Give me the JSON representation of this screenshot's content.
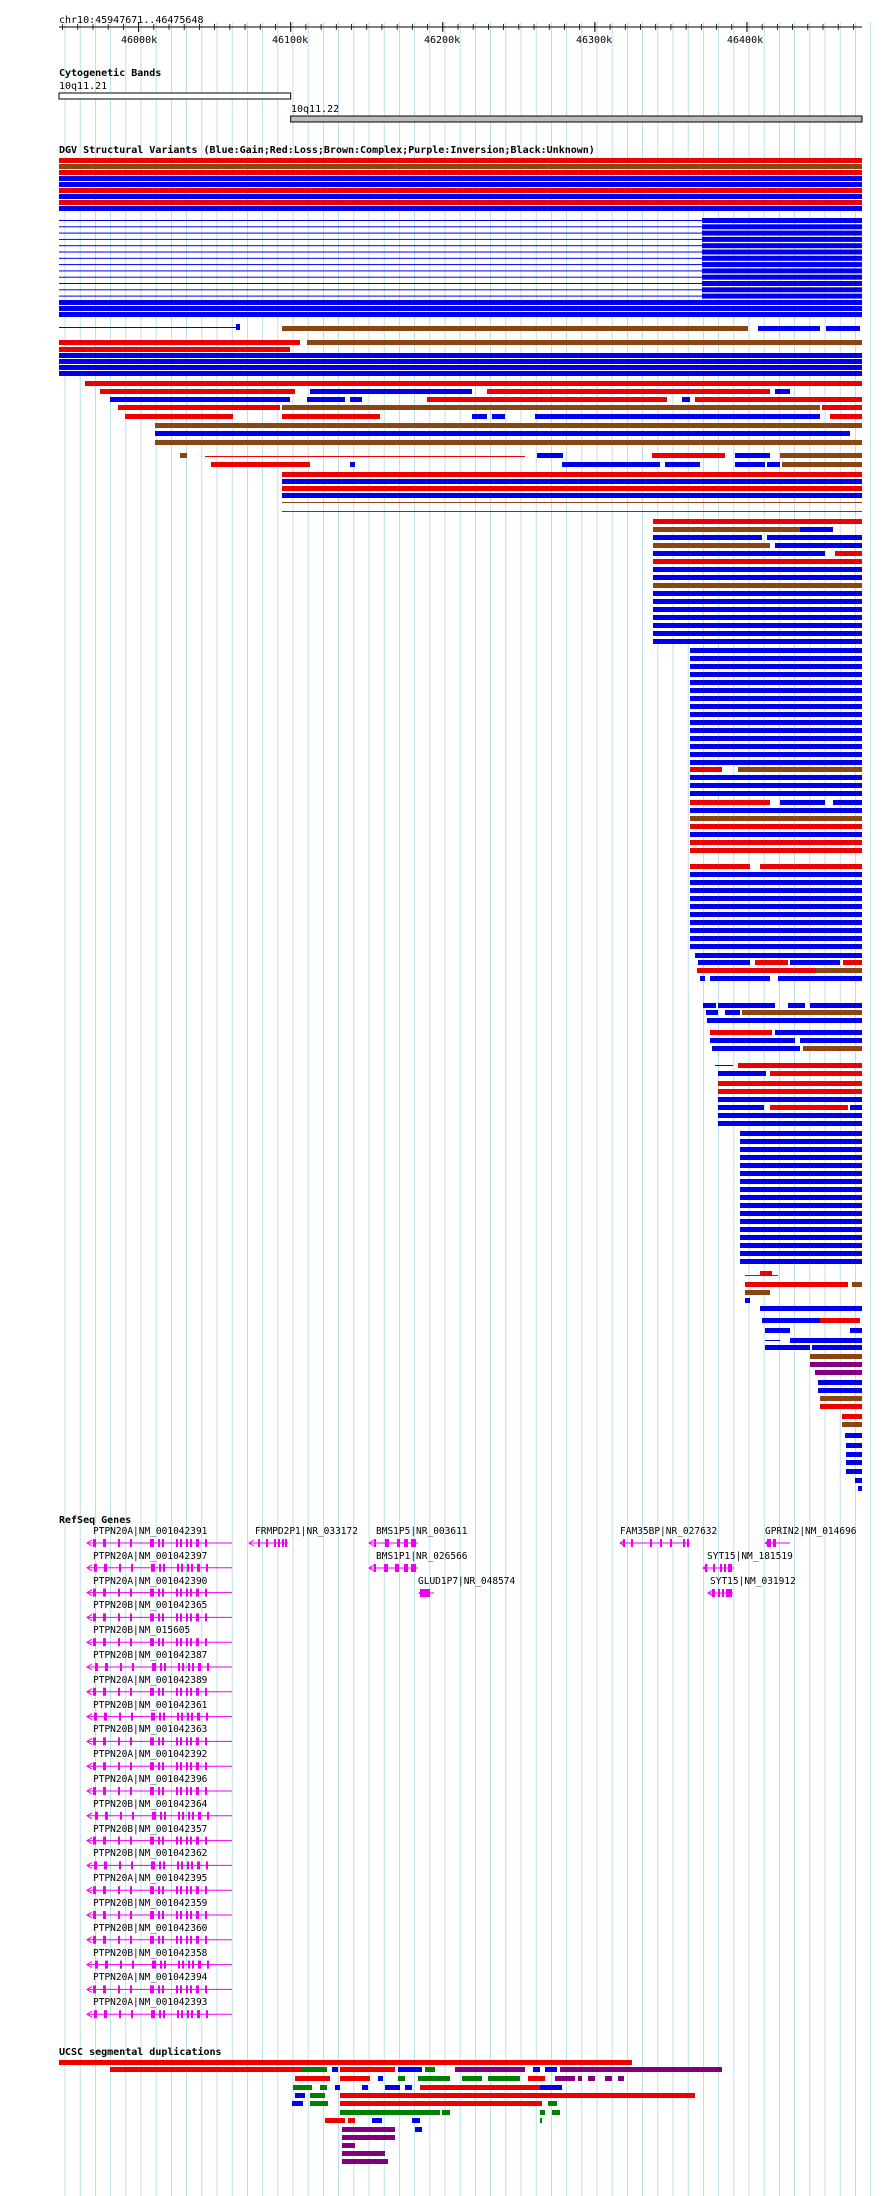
{
  "region": "chr10:45947671..46475648",
  "ruler": {
    "ticks": [
      "46000k",
      "46100k",
      "46200k",
      "46300k",
      "46400k"
    ]
  },
  "colors": {
    "gain": "#0000ee",
    "loss": "#ee0000",
    "complex": "#8b4513",
    "inversion": "#800080",
    "unknown": "#000000",
    "gene": "#ee00ee",
    "gridline": "#add8e6",
    "segdup_red": "#ee0000",
    "segdup_green": "#008000",
    "segdup_blue": "#0000ee",
    "segdup_purple": "#800080"
  },
  "tracks": {
    "cytoband": {
      "title": "Cytogenetic Bands",
      "bands": [
        {
          "name": "10q11.21",
          "start": 45947671,
          "end": 46100000,
          "stain": "white"
        },
        {
          "name": "10q11.22",
          "start": 46100000,
          "end": 46475648,
          "stain": "gray"
        }
      ]
    },
    "dgv": {
      "title": "DGV Structural Variants (Blue:Gain;Red:Loss;Brown:Complex;Purple:Inversion;Black:Unknown)"
    },
    "refseq": {
      "title": "RefSeq Genes",
      "genes": [
        {
          "name": "PTPN20A|NM_001042391"
        },
        {
          "name": "PTPN20A|NM_001042397"
        },
        {
          "name": "PTPN20A|NM_001042390"
        },
        {
          "name": "PTPN20B|NM_001042365"
        },
        {
          "name": "PTPN20B|NM_015605"
        },
        {
          "name": "PTPN20B|NM_001042387"
        },
        {
          "name": "PTPN20A|NM_001042389"
        },
        {
          "name": "PTPN20B|NM_001042361"
        },
        {
          "name": "PTPN20B|NM_001042363"
        },
        {
          "name": "PTPN20A|NM_001042392"
        },
        {
          "name": "PTPN20A|NM_001042396"
        },
        {
          "name": "PTPN20B|NM_001042364"
        },
        {
          "name": "PTPN20B|NM_001042357"
        },
        {
          "name": "PTPN20B|NM_001042362"
        },
        {
          "name": "PTPN20A|NM_001042395"
        },
        {
          "name": "PTPN20B|NM_001042359"
        },
        {
          "name": "PTPN20B|NM_001042360"
        },
        {
          "name": "PTPN20B|NM_001042358"
        },
        {
          "name": "PTPN20A|NM_001042394"
        },
        {
          "name": "PTPN20A|NM_001042393"
        },
        {
          "name": "FRMPD2P1|NR_033172"
        },
        {
          "name": "BMS1P5|NR_003611"
        },
        {
          "name": "BMS1P1|NR_026566"
        },
        {
          "name": "GLUD1P7|NR_048574"
        },
        {
          "name": "FAM35BP|NR_027632"
        },
        {
          "name": "GPRIN2|NM_014696"
        },
        {
          "name": "SYT15|NM_181519"
        },
        {
          "name": "SYT15|NM_031912"
        }
      ]
    },
    "segdups": {
      "title": "UCSC segmental duplications"
    }
  }
}
